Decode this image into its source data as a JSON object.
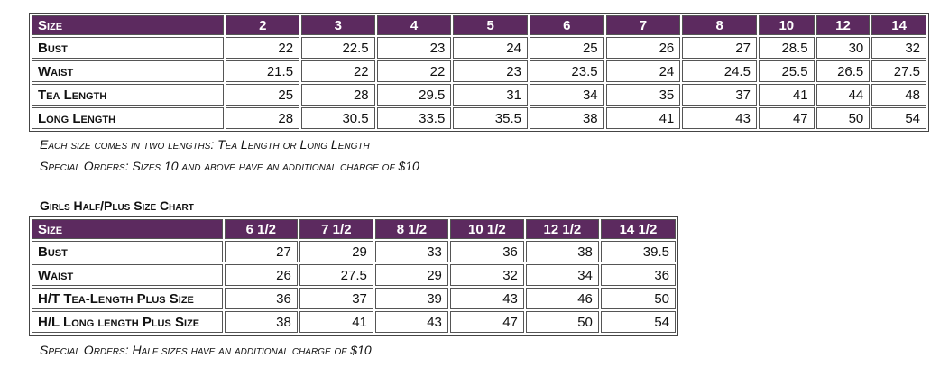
{
  "size_table": {
    "header": [
      "Size",
      "2",
      "3",
      "4",
      "5",
      "6",
      "7",
      "8",
      "10",
      "12",
      "14"
    ],
    "rows": [
      [
        "Bust",
        "22",
        "22.5",
        "23",
        "24",
        "25",
        "26",
        "27",
        "28.5",
        "30",
        "32"
      ],
      [
        "Waist",
        "21.5",
        "22",
        "22",
        "23",
        "23.5",
        "24",
        "24.5",
        "25.5",
        "26.5",
        "27.5"
      ],
      [
        "Tea Length",
        "25",
        "28",
        "29.5",
        "31",
        "34",
        "35",
        "37",
        "41",
        "44",
        "48"
      ],
      [
        "Long Length",
        "28",
        "30.5",
        "33.5",
        "35.5",
        "38",
        "41",
        "43",
        "47",
        "50",
        "54"
      ]
    ]
  },
  "notes": [
    "Each size comes in two lengths: Tea Length or Long Length",
    "Special Orders: Sizes 10 and above have an additional charge of $10"
  ],
  "plus_title": "Girls Half/Plus Size Chart",
  "plus_table": {
    "header": [
      "Size",
      "6 1/2",
      "7 1/2",
      "8 1/2",
      "10 1/2",
      "12 1/2",
      "14 1/2"
    ],
    "rows": [
      [
        "Bust",
        "27",
        "29",
        "33",
        "36",
        "38",
        "39.5"
      ],
      [
        "Waist",
        "26",
        "27.5",
        "29",
        "32",
        "34",
        "36"
      ],
      [
        "H/T Tea-Length Plus Size",
        "36",
        "37",
        "39",
        "43",
        "46",
        "50"
      ],
      [
        "H/L Long length Plus Size",
        "38",
        "41",
        "43",
        "47",
        "50",
        "54"
      ]
    ]
  },
  "plus_note": "Special Orders: Half sizes have an additional charge of $10"
}
